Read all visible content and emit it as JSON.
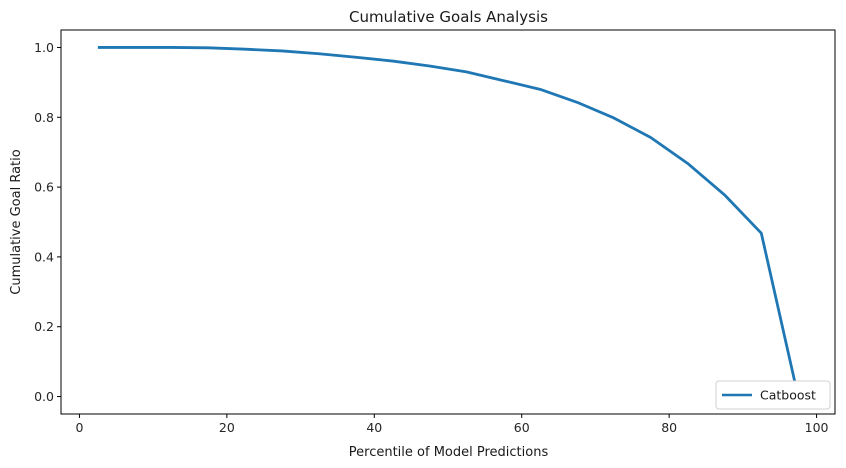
{
  "chart_data": {
    "type": "line",
    "title": "Cumulative Goals Analysis",
    "xlabel": "Percentile of Model Predictions",
    "ylabel": "Cumulative Goal Ratio",
    "xlim": [
      -2.5,
      102.5
    ],
    "ylim": [
      -0.05,
      1.05
    ],
    "xticks": [
      0,
      20,
      40,
      60,
      80,
      100
    ],
    "xtick_labels": [
      "0",
      "20",
      "40",
      "60",
      "80",
      "100"
    ],
    "yticks": [
      0.0,
      0.2,
      0.4,
      0.6,
      0.8,
      1.0
    ],
    "ytick_labels": [
      "0.0",
      "0.2",
      "0.4",
      "0.6",
      "0.8",
      "1.0"
    ],
    "grid": false,
    "legend_position": "lower-right",
    "series": [
      {
        "name": "Catboost",
        "color": "#1f77b4",
        "x": [
          2.5,
          7.5,
          12.5,
          17.5,
          22.5,
          27.5,
          32.5,
          37.5,
          42.5,
          47.5,
          52.5,
          57.5,
          62.5,
          67.5,
          72.5,
          77.5,
          82.5,
          87.5,
          92.5,
          97.5
        ],
        "y": [
          1.0,
          1.0,
          1.0,
          0.999,
          0.995,
          0.99,
          0.982,
          0.972,
          0.961,
          0.947,
          0.93,
          0.905,
          0.88,
          0.843,
          0.798,
          0.742,
          0.668,
          0.578,
          0.468,
          0.0
        ]
      }
    ]
  }
}
